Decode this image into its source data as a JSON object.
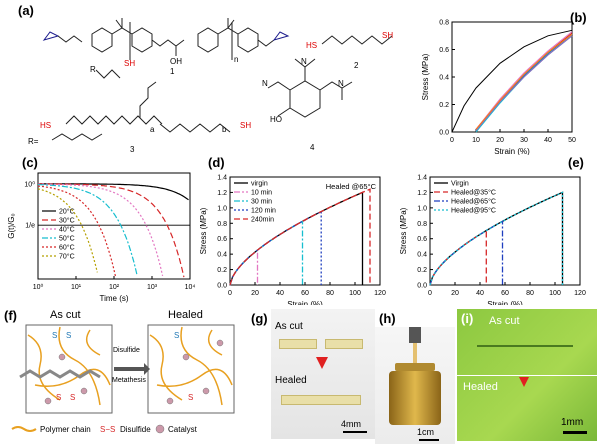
{
  "panels": {
    "a": {
      "label": "(a)",
      "compound_numbers": [
        "1",
        "2",
        "3",
        "4"
      ],
      "repeat_n": "n",
      "hydroxyl": "OH",
      "thiol_groups": [
        "HS",
        "SH",
        "SH",
        "HS",
        "SH"
      ],
      "sub_a": "a",
      "sub_b": "b",
      "r_label": "R",
      "r_def": "R=",
      "phenol_oh": "HO",
      "amine_n": "N"
    },
    "b": {
      "label": "(b)"
    },
    "c": {
      "label": "(c)"
    },
    "d": {
      "label": "(d)",
      "annotation": "Healed @65°C"
    },
    "e": {
      "label": "(e)"
    },
    "f": {
      "label": "(f)",
      "left_title": "As cut",
      "right_title": "Healed",
      "arrow_text": [
        "Disulfide",
        "Metathesis"
      ],
      "legend": {
        "polymer": "Polymer chain",
        "disulfide": "Disulfide",
        "catalyst": "Catalyst",
        "ss": "S−S"
      },
      "s_letter": "S"
    },
    "g": {
      "label": "(g)",
      "top": "As cut",
      "bottom": "Healed",
      "scale": "4mm"
    },
    "h": {
      "label": "(h)",
      "scale": "1cm"
    },
    "i": {
      "label": "(i)",
      "top": "As cut",
      "bottom": "Healed",
      "scale": "1mm"
    }
  },
  "chart_data": [
    {
      "panel": "b",
      "type": "line",
      "xlabel": "Strain (%)",
      "ylabel": "Stress (MPa)",
      "xlim": [
        0,
        50
      ],
      "ylim": [
        0,
        0.8
      ],
      "xticks": [
        0,
        10,
        20,
        30,
        40,
        50
      ],
      "yticks": [
        0.0,
        0.2,
        0.4,
        0.6,
        0.8
      ],
      "series": [
        {
          "color": "#000000",
          "x": [
            0,
            5,
            10,
            20,
            30,
            40,
            50
          ],
          "y": [
            0,
            0.19,
            0.32,
            0.5,
            0.62,
            0.7,
            0.74
          ]
        },
        {
          "color": "#d62728",
          "x": [
            10,
            20,
            30,
            40,
            50
          ],
          "y": [
            0.02,
            0.23,
            0.42,
            0.58,
            0.72
          ]
        },
        {
          "color": "#1f77b4",
          "x": [
            10,
            20,
            30,
            40,
            50
          ],
          "y": [
            0.01,
            0.22,
            0.41,
            0.57,
            0.71
          ]
        },
        {
          "color": "#e377c2",
          "x": [
            10,
            20,
            30,
            40,
            50
          ],
          "y": [
            0.02,
            0.24,
            0.43,
            0.59,
            0.73
          ]
        },
        {
          "color": "#17becf",
          "x": [
            10,
            20,
            30,
            40,
            50
          ],
          "y": [
            0.0,
            0.21,
            0.4,
            0.56,
            0.7
          ]
        },
        {
          "color": "#9467bd",
          "x": [
            10,
            20,
            30,
            40,
            50
          ],
          "y": [
            0.01,
            0.22,
            0.4,
            0.56,
            0.7
          ]
        },
        {
          "color": "#ff7f0e",
          "x": [
            10,
            20,
            30,
            40,
            50
          ],
          "y": [
            0.02,
            0.23,
            0.42,
            0.58,
            0.71
          ]
        }
      ]
    },
    {
      "panel": "c",
      "type": "line",
      "xlabel": "Time (s)",
      "ylabel": "G(t)/G₀",
      "xscale": "log",
      "xlim": [
        1,
        10000
      ],
      "yscale": "log",
      "ylim": [
        0.1,
        1.3
      ],
      "xtick_labels": [
        "10⁰",
        "10¹",
        "10²",
        "10³",
        "10⁴"
      ],
      "ytick_labels": [
        "10⁰",
        "1/e"
      ],
      "legend": "middle-left",
      "series": [
        {
          "name": "20°C",
          "color": "#000000",
          "dash": "",
          "decay_time": 30000
        },
        {
          "name": "30°C",
          "color": "#d62728",
          "dash": "6,3",
          "decay_time": 2500
        },
        {
          "name": "40°C",
          "color": "#e377c2",
          "dash": "2,2",
          "decay_time": 700
        },
        {
          "name": "50°C",
          "color": "#17becf",
          "dash": "6,2,2,2",
          "decay_time": 150
        },
        {
          "name": "60°C",
          "color": "#d62728",
          "dash": "2,2",
          "decay_time": 40
        },
        {
          "name": "70°C",
          "color": "#b5a000",
          "dash": "2,2",
          "decay_time": 14
        }
      ]
    },
    {
      "panel": "d",
      "type": "line",
      "xlabel": "Strain (%)",
      "ylabel": "Stress (MPa)",
      "xlim": [
        0,
        120
      ],
      "ylim": [
        0,
        1.4
      ],
      "xticks": [
        0,
        20,
        40,
        60,
        80,
        100,
        120
      ],
      "yticks": [
        0.0,
        0.2,
        0.4,
        0.6,
        0.8,
        1.0,
        1.2,
        1.4
      ],
      "legend": "top-left",
      "series": [
        {
          "name": "virgin",
          "color": "#000000",
          "dash": "",
          "break": 106
        },
        {
          "name": "10 min",
          "color": "#e377c2",
          "dash": "6,2,2,2",
          "break": 22
        },
        {
          "name": "30 min",
          "color": "#17becf",
          "dash": "6,2,2,2",
          "break": 58
        },
        {
          "name": "120 min",
          "color": "#1f3fbf",
          "dash": "2,2",
          "break": 73
        },
        {
          "name": "240min",
          "color": "#d62728",
          "dash": "6,3",
          "break": 112
        }
      ]
    },
    {
      "panel": "e",
      "type": "line",
      "xlabel": "Strain (%)",
      "ylabel": "Stress (MPa)",
      "xlim": [
        0,
        120
      ],
      "ylim": [
        0,
        1.4
      ],
      "xticks": [
        0,
        20,
        40,
        60,
        80,
        100,
        120
      ],
      "yticks": [
        0.0,
        0.2,
        0.4,
        0.6,
        0.8,
        1.0,
        1.2,
        1.4
      ],
      "legend": "top-left",
      "series": [
        {
          "name": "Virgin",
          "color": "#000000",
          "dash": "",
          "break": 106
        },
        {
          "name": "Healed@35°C",
          "color": "#d62728",
          "dash": "6,3",
          "break": 45
        },
        {
          "name": "Healed@65°C",
          "color": "#1f3fbf",
          "dash": "6,2,2,2",
          "break": 58
        },
        {
          "name": "Healed@95°C",
          "color": "#17becf",
          "dash": "2,2",
          "break": 106
        }
      ]
    }
  ]
}
